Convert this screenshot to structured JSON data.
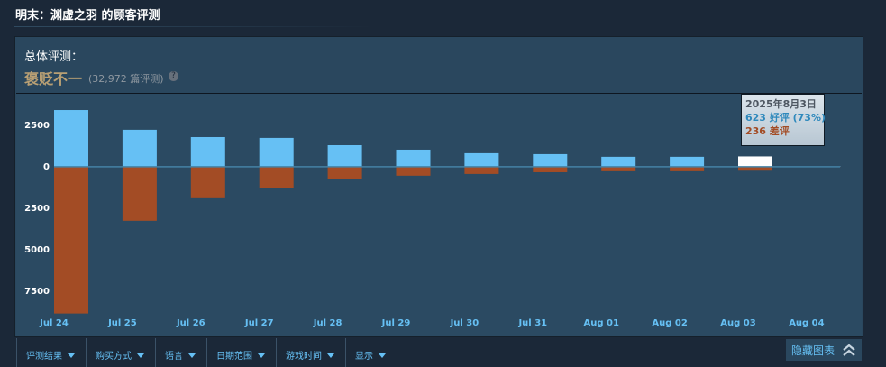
{
  "header": {
    "title": "明末：渊虚之羽 的顾客评测"
  },
  "summary": {
    "label": "总体评测：",
    "rating": "褒贬不一",
    "count": "(32,972 篇评测)",
    "help": "?"
  },
  "chart_data": {
    "type": "bar",
    "categories": [
      "Jul 24",
      "Jul 25",
      "Jul 26",
      "Jul 27",
      "Jul 28",
      "Jul 29",
      "Jul 30",
      "Jul 31",
      "Aug 01",
      "Aug 02",
      "Aug 03",
      "Aug 04"
    ],
    "series": [
      {
        "color": "#66c0f4",
        "values": [
          3420,
          2230,
          1790,
          1740,
          1300,
          1030,
          815,
          760,
          600,
          600,
          623,
          20
        ]
      },
      {
        "color": "#a34c25",
        "values": [
          -8850,
          -3260,
          -1900,
          -1300,
          -760,
          -540,
          -435,
          -330,
          -270,
          -270,
          -236,
          -10
        ]
      }
    ],
    "highlight_color": "#ffffff",
    "highlight_index": 10,
    "ylim": [
      -8870,
      4400
    ],
    "yticks": [
      {
        "value": 2500,
        "label": "2500"
      },
      0,
      {
        "value": -2500,
        "label": "2500"
      },
      {
        "value": -5000,
        "label": "5000"
      },
      {
        "value": -7500,
        "label": "7500"
      }
    ],
    "zero_line_color": "#4582a5"
  },
  "tooltip": {
    "date": "2025年8月3日",
    "positive": "623 好评 (73%)",
    "negative": "236 差评"
  },
  "filters": [
    "评测结果",
    "购买方式",
    "语言",
    "日期范围",
    "游戏时间",
    "显示"
  ],
  "hide_button": "隐藏图表"
}
